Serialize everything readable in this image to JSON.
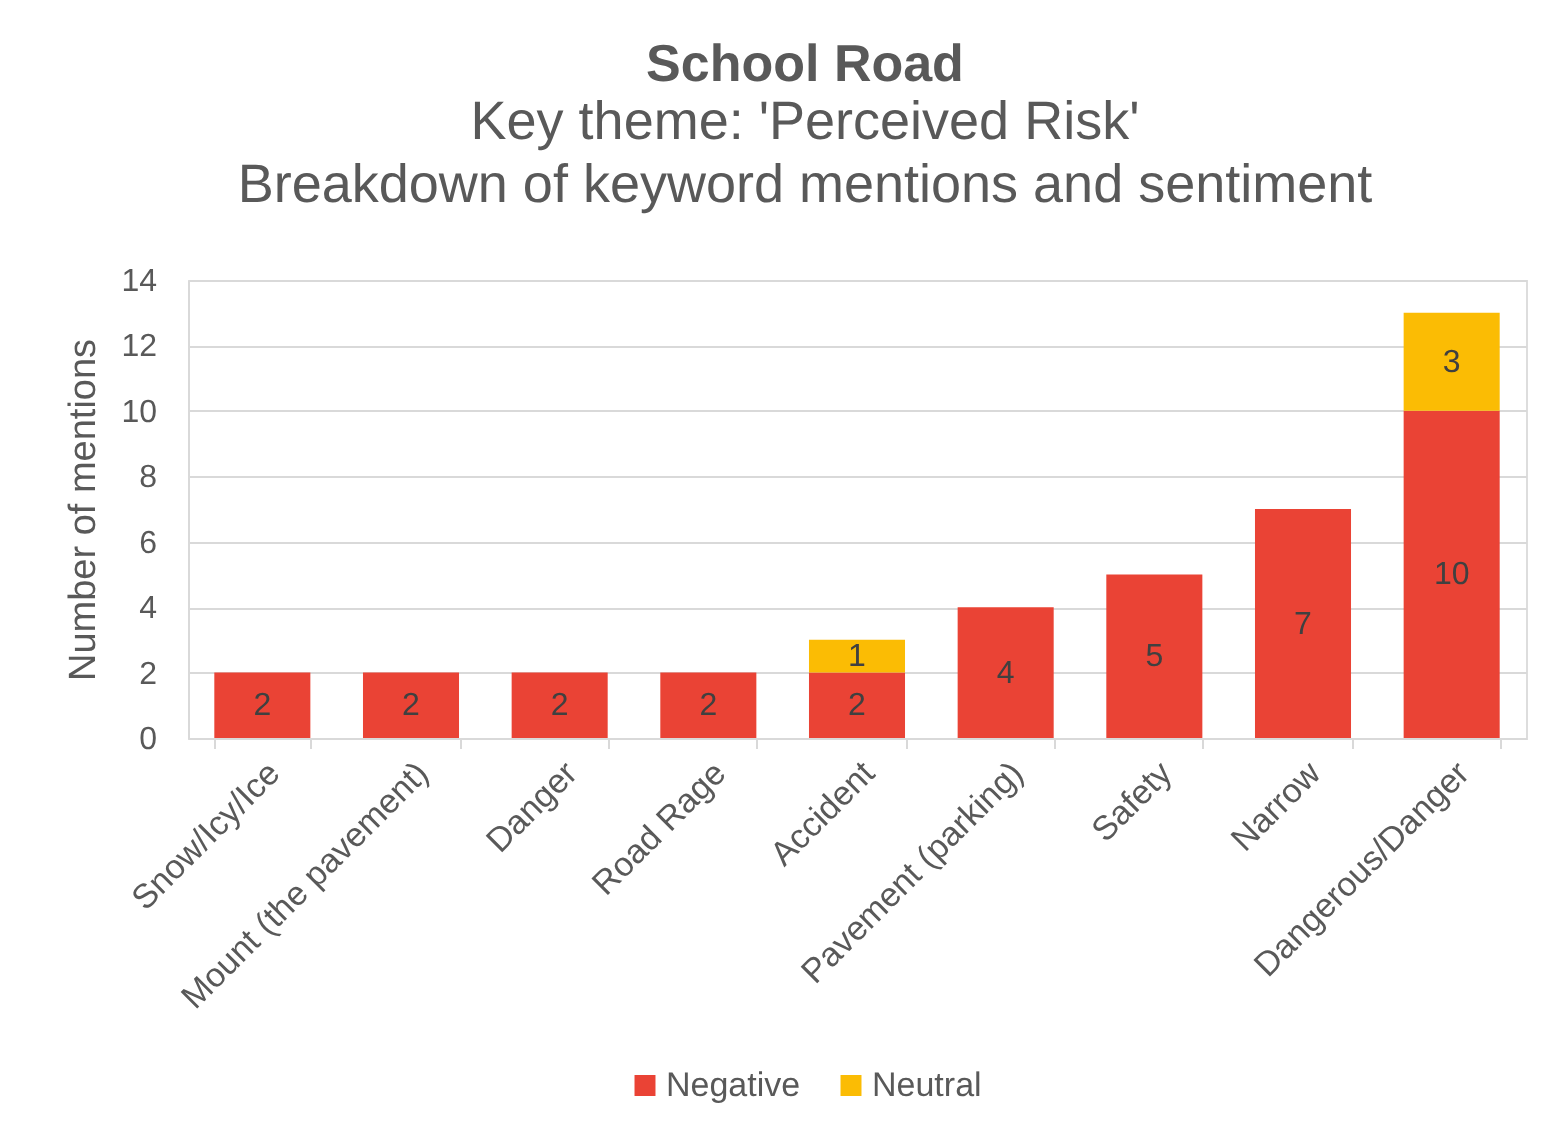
{
  "chart_data": {
    "type": "bar",
    "title": "School Road",
    "subtitle": "Key theme: 'Perceived Risk'\nBreakdown of keyword mentions and sentiment",
    "ylabel": "Number of mentions",
    "categories": [
      "Snow/Icy/Ice",
      "Mount (the pavement)",
      "Danger",
      "Road Rage",
      "Accident",
      "Pavement (parking)",
      "Safety",
      "Narrow",
      "Dangerous/Danger"
    ],
    "series": [
      {
        "name": "Negative",
        "color": "#ea4335",
        "values": [
          2,
          2,
          2,
          2,
          2,
          4,
          5,
          7,
          10
        ]
      },
      {
        "name": "Neutral",
        "color": "#fbbc04",
        "values": [
          null,
          null,
          null,
          null,
          1,
          null,
          null,
          null,
          3
        ]
      }
    ],
    "stacked": true,
    "ylim": [
      0,
      14
    ],
    "yticks": [
      0,
      2,
      4,
      6,
      8,
      10,
      12,
      14
    ],
    "grid": "y",
    "legend": "bottom",
    "data_labels": true
  }
}
